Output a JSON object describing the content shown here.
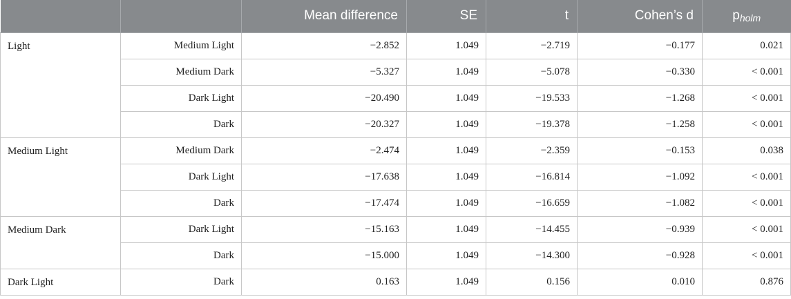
{
  "header": {
    "group": "",
    "comparison": "",
    "mean_difference": "Mean difference",
    "se": "SE",
    "t": "t",
    "cohens_d": "Cohen’s d",
    "p_main": "p",
    "p_sub": "holm"
  },
  "rows": [
    {
      "group": "Light",
      "comparison": "Medium Light",
      "mean": "−2.852",
      "se": "1.049",
      "t": "−2.719",
      "d": "−0.177",
      "p": "0.021"
    },
    {
      "group": "",
      "comparison": "Medium Dark",
      "mean": "−5.327",
      "se": "1.049",
      "t": "−5.078",
      "d": "−0.330",
      "p": "<  0.001"
    },
    {
      "group": "",
      "comparison": "Dark Light",
      "mean": "−20.490",
      "se": "1.049",
      "t": "−19.533",
      "d": "−1.268",
      "p": "<  0.001"
    },
    {
      "group": "",
      "comparison": "Dark",
      "mean": "−20.327",
      "se": "1.049",
      "t": "−19.378",
      "d": "−1.258",
      "p": "<  0.001"
    },
    {
      "group": "Medium Light",
      "comparison": "Medium Dark",
      "mean": "−2.474",
      "se": "1.049",
      "t": "−2.359",
      "d": "−0.153",
      "p": "0.038"
    },
    {
      "group": "",
      "comparison": "Dark Light",
      "mean": "−17.638",
      "se": "1.049",
      "t": "−16.814",
      "d": "−1.092",
      "p": "<  0.001"
    },
    {
      "group": "",
      "comparison": "Dark",
      "mean": "−17.474",
      "se": "1.049",
      "t": "−16.659",
      "d": "−1.082",
      "p": "<  0.001"
    },
    {
      "group": "Medium Dark",
      "comparison": "Dark Light",
      "mean": "−15.163",
      "se": "1.049",
      "t": "−14.455",
      "d": "−0.939",
      "p": "<  0.001"
    },
    {
      "group": "",
      "comparison": "Dark",
      "mean": "−15.000",
      "se": "1.049",
      "t": "−14.300",
      "d": "−0.928",
      "p": "<  0.001"
    },
    {
      "group": "Dark Light",
      "comparison": "Dark",
      "mean": "0.163",
      "se": "1.049",
      "t": "0.156",
      "d": "0.010",
      "p": "0.876"
    }
  ],
  "colors": {
    "header_bg": "#878a8d",
    "header_text": "#ffffff",
    "grid_line": "#c7c7c7"
  }
}
